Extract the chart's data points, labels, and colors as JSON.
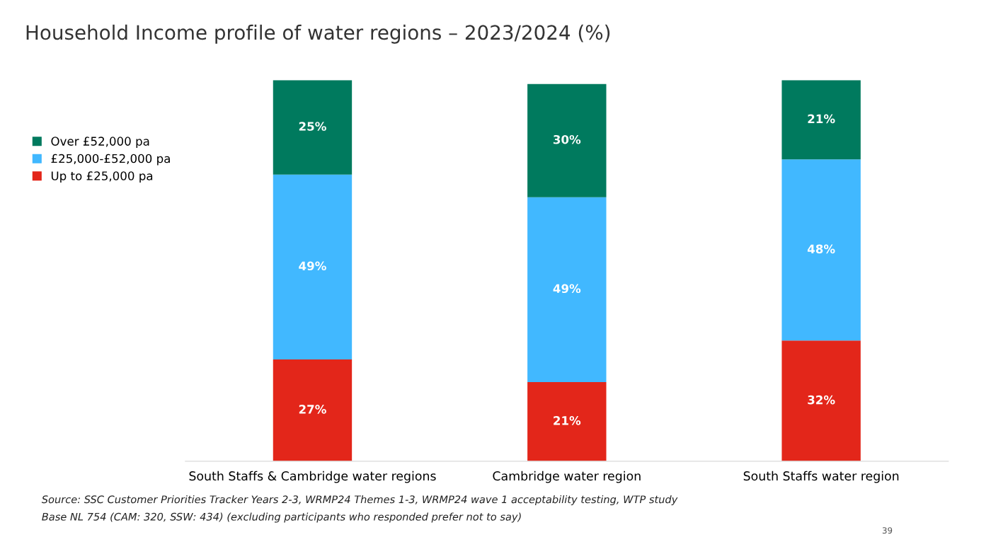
{
  "chart_data": {
    "type": "bar",
    "title": "Household Income profile of water regions – 2023/2024 (%)",
    "categories": [
      "South Staffs & Cambridge water regions",
      "Cambridge water region",
      "South Staffs water region"
    ],
    "stacked": true,
    "legend": "top left",
    "series": [
      {
        "name": "Up to £25,000 pa",
        "color": "#e3261a",
        "values": [
          27,
          21,
          32
        ],
        "value_labels": [
          "27%",
          "21%",
          "32%"
        ]
      },
      {
        "name": "£25,000-£52,000 pa",
        "color": "#41b8ff",
        "values": [
          49,
          49,
          48
        ],
        "value_labels": [
          "49%",
          "49%",
          "48%"
        ]
      },
      {
        "name": "Over £52,000 pa",
        "color": "#007a5e",
        "values": [
          25,
          30,
          21
        ],
        "value_labels": [
          "25%",
          "30%",
          "21%"
        ]
      }
    ],
    "annotations": [
      "Source: SSC Customer Priorities Tracker Years 2-3, WRMP24 Themes 1-3, WRMP24 wave 1 acceptability testing, WTP study",
      "Base NL 754 (CAM: 320, SSW: 434) (excluding participants who responded prefer not to say)",
      "39"
    ]
  }
}
